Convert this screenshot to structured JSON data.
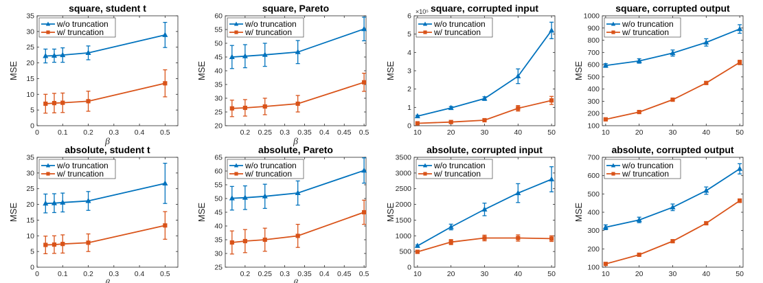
{
  "colors": {
    "without": "#0072BD",
    "with": "#D95319"
  },
  "chart_data": [
    {
      "type": "line",
      "title": "square, student t",
      "xlabel": "β",
      "ylabel": "MSE",
      "xlim": [
        0,
        0.55
      ],
      "ylim": [
        0,
        35
      ],
      "xticks": [
        0,
        0.1,
        0.2,
        0.3,
        0.4,
        0.5
      ],
      "yticks": [
        0,
        5,
        10,
        15,
        20,
        25,
        30,
        35
      ],
      "xtick_labels": [
        "0",
        "0.1",
        "0.2",
        "0.3",
        "0.4",
        "0.5"
      ],
      "ytick_labels": [
        "0",
        "5",
        "10",
        "15",
        "20",
        "25",
        "30",
        "35"
      ],
      "y_multiplier": "",
      "x": [
        0.033,
        0.067,
        0.1,
        0.2,
        0.5
      ],
      "series": [
        {
          "name": "w/o truncation",
          "marker": "triangle",
          "values": [
            22.2,
            22.3,
            22.5,
            23.2,
            28.9
          ],
          "errors": [
            2.2,
            2.1,
            2.3,
            2.2,
            4.0
          ]
        },
        {
          "name": "w/ truncation",
          "marker": "square",
          "values": [
            7.0,
            7.2,
            7.3,
            7.8,
            13.5
          ],
          "errors": [
            3.0,
            3.1,
            3.1,
            3.2,
            4.3
          ]
        }
      ],
      "legend": "top-left",
      "grid": false
    },
    {
      "type": "line",
      "title": "square, Pareto",
      "xlabel": "β",
      "ylabel": "MSE",
      "xlim": [
        0.15,
        0.505
      ],
      "ylim": [
        20,
        60
      ],
      "xticks": [
        0.2,
        0.25,
        0.3,
        0.35,
        0.4,
        0.45,
        0.5
      ],
      "yticks": [
        20,
        25,
        30,
        35,
        40,
        45,
        50,
        55,
        60
      ],
      "xtick_labels": [
        "0.2",
        "0.25",
        "0.3",
        "0.35",
        "0.4",
        "0.45",
        "0.5"
      ],
      "ytick_labels": [
        "20",
        "25",
        "30",
        "35",
        "40",
        "45",
        "50",
        "55",
        "60"
      ],
      "y_multiplier": "",
      "x": [
        0.167,
        0.2,
        0.25,
        0.333,
        0.5
      ],
      "series": [
        {
          "name": "w/o truncation",
          "marker": "triangle",
          "values": [
            45.0,
            45.3,
            45.8,
            46.8,
            55.2
          ],
          "errors": [
            4.2,
            4.2,
            4.2,
            4.2,
            4.3
          ]
        },
        {
          "name": "w/ truncation",
          "marker": "square",
          "values": [
            26.3,
            26.5,
            27.0,
            28.0,
            35.8
          ],
          "errors": [
            3.0,
            3.0,
            3.0,
            3.0,
            3.3
          ]
        }
      ],
      "legend": "top-left",
      "grid": false
    },
    {
      "type": "line",
      "title": "square, corrupted input",
      "xlabel": "",
      "ylabel": "MSE",
      "xlim": [
        9,
        51
      ],
      "ylim": [
        0,
        6
      ],
      "xticks": [
        10,
        20,
        30,
        40,
        50
      ],
      "yticks": [
        0,
        1,
        2,
        3,
        4,
        5,
        6
      ],
      "xtick_labels": [
        "10",
        "20",
        "30",
        "40",
        "50"
      ],
      "ytick_labels": [
        "0",
        "1",
        "2",
        "3",
        "4",
        "5",
        "6"
      ],
      "y_multiplier": "×10⁵",
      "x": [
        10,
        20,
        30,
        40,
        50
      ],
      "series": [
        {
          "name": "w/o truncation",
          "marker": "triangle",
          "values": [
            0.52,
            0.97,
            1.48,
            2.7,
            5.2
          ],
          "errors": [
            0.05,
            0.08,
            0.1,
            0.4,
            0.45
          ]
        },
        {
          "name": "w/ truncation",
          "marker": "square",
          "values": [
            0.13,
            0.2,
            0.3,
            0.95,
            1.38
          ],
          "errors": [
            0.02,
            0.03,
            0.04,
            0.15,
            0.22
          ]
        }
      ],
      "legend": "top-left",
      "grid": false
    },
    {
      "type": "line",
      "title": "square, corrupted output",
      "xlabel": "",
      "ylabel": "MSE",
      "xlim": [
        9,
        51
      ],
      "ylim": [
        100,
        1000
      ],
      "xticks": [
        10,
        20,
        30,
        40,
        50
      ],
      "yticks": [
        100,
        200,
        300,
        400,
        500,
        600,
        700,
        800,
        900,
        1000
      ],
      "xtick_labels": [
        "10",
        "20",
        "30",
        "40",
        "50"
      ],
      "ytick_labels": [
        "100",
        "200",
        "300",
        "400",
        "500",
        "600",
        "700",
        "800",
        "900",
        "1000"
      ],
      "y_multiplier": "",
      "x": [
        10,
        20,
        30,
        40,
        50
      ],
      "series": [
        {
          "name": "w/o truncation",
          "marker": "triangle",
          "values": [
            593,
            630,
            695,
            782,
            892
          ],
          "errors": [
            15,
            18,
            25,
            30,
            35
          ]
        },
        {
          "name": "w/ truncation",
          "marker": "square",
          "values": [
            152,
            212,
            313,
            450,
            618
          ],
          "errors": [
            5,
            6,
            8,
            12,
            18
          ]
        }
      ],
      "legend": "top-left",
      "grid": false
    },
    {
      "type": "line",
      "title": "absolute, student t",
      "xlabel": "β",
      "ylabel": "MSE",
      "xlim": [
        0,
        0.55
      ],
      "ylim": [
        0,
        35
      ],
      "xticks": [
        0,
        0.1,
        0.2,
        0.3,
        0.4,
        0.5
      ],
      "yticks": [
        0,
        5,
        10,
        15,
        20,
        25,
        30,
        35
      ],
      "xtick_labels": [
        "0",
        "0.1",
        "0.2",
        "0.3",
        "0.4",
        "0.5"
      ],
      "ytick_labels": [
        "0",
        "5",
        "10",
        "15",
        "20",
        "25",
        "30",
        "35"
      ],
      "y_multiplier": "",
      "x": [
        0.033,
        0.067,
        0.1,
        0.2,
        0.5
      ],
      "series": [
        {
          "name": "w/o truncation",
          "marker": "triangle",
          "values": [
            20.3,
            20.4,
            20.6,
            21.1,
            26.7
          ],
          "errors": [
            3.0,
            3.0,
            3.0,
            3.0,
            6.4
          ]
        },
        {
          "name": "w/ truncation",
          "marker": "square",
          "values": [
            7.1,
            7.2,
            7.4,
            7.8,
            13.3
          ],
          "errors": [
            2.8,
            2.8,
            2.9,
            2.8,
            4.4
          ]
        }
      ],
      "legend": "top-left",
      "grid": false
    },
    {
      "type": "line",
      "title": "absolute, Pareto",
      "xlabel": "β",
      "ylabel": "MSE",
      "xlim": [
        0.15,
        0.505
      ],
      "ylim": [
        25,
        65
      ],
      "xticks": [
        0.2,
        0.25,
        0.3,
        0.35,
        0.4,
        0.45,
        0.5
      ],
      "yticks": [
        25,
        30,
        35,
        40,
        45,
        50,
        55,
        60,
        65
      ],
      "xtick_labels": [
        "0.2",
        "0.25",
        "0.3",
        "0.35",
        "0.4",
        "0.45",
        "0.5"
      ],
      "ytick_labels": [
        "25",
        "30",
        "35",
        "40",
        "45",
        "50",
        "55",
        "60",
        "65"
      ],
      "y_multiplier": "",
      "x": [
        0.167,
        0.2,
        0.25,
        0.333,
        0.5
      ],
      "series": [
        {
          "name": "w/o truncation",
          "marker": "triangle",
          "values": [
            50.1,
            50.3,
            50.8,
            52.0,
            60.2
          ],
          "errors": [
            4.3,
            4.3,
            4.4,
            4.4,
            4.6
          ]
        },
        {
          "name": "w/ truncation",
          "marker": "square",
          "values": [
            34.0,
            34.5,
            35.0,
            36.4,
            45.0
          ],
          "errors": [
            4.2,
            4.2,
            4.2,
            4.2,
            4.4
          ]
        }
      ],
      "legend": "top-left",
      "grid": false
    },
    {
      "type": "line",
      "title": "absolute, corrupted input",
      "xlabel": "",
      "ylabel": "MSE",
      "xlim": [
        9,
        51
      ],
      "ylim": [
        0,
        3500
      ],
      "xticks": [
        10,
        20,
        30,
        40,
        50
      ],
      "yticks": [
        0,
        500,
        1000,
        1500,
        2000,
        2500,
        3000,
        3500
      ],
      "xtick_labels": [
        "10",
        "20",
        "30",
        "40",
        "50"
      ],
      "ytick_labels": [
        "0",
        "500",
        "1000",
        "1500",
        "2000",
        "2500",
        "3000",
        "3500"
      ],
      "y_multiplier": "",
      "x": [
        10,
        20,
        30,
        40,
        50
      ],
      "series": [
        {
          "name": "w/o truncation",
          "marker": "triangle",
          "values": [
            680,
            1280,
            1840,
            2360,
            2800
          ],
          "errors": [
            30,
            90,
            200,
            300,
            400
          ]
        },
        {
          "name": "w/ truncation",
          "marker": "square",
          "values": [
            490,
            800,
            930,
            930,
            910
          ],
          "errors": [
            20,
            80,
            90,
            100,
            90
          ]
        }
      ],
      "legend": "top-left",
      "grid": false
    },
    {
      "type": "line",
      "title": "absolute, corrupted output",
      "xlabel": "",
      "ylabel": "MSE",
      "xlim": [
        9,
        51
      ],
      "ylim": [
        100,
        700
      ],
      "xticks": [
        10,
        20,
        30,
        40,
        50
      ],
      "yticks": [
        100,
        200,
        300,
        400,
        500,
        600,
        700
      ],
      "xtick_labels": [
        "10",
        "20",
        "30",
        "40",
        "50"
      ],
      "ytick_labels": [
        "100",
        "200",
        "300",
        "400",
        "500",
        "600",
        "700"
      ],
      "y_multiplier": "",
      "x": [
        10,
        20,
        30,
        40,
        50
      ],
      "series": [
        {
          "name": "w/o truncation",
          "marker": "triangle",
          "values": [
            318,
            358,
            427,
            518,
            637
          ],
          "errors": [
            13,
            15,
            18,
            20,
            28
          ]
        },
        {
          "name": "w/ truncation",
          "marker": "square",
          "values": [
            118,
            168,
            242,
            340,
            463
          ],
          "errors": [
            4,
            4,
            5,
            8,
            10
          ]
        }
      ],
      "legend": "top-left",
      "grid": false
    }
  ]
}
